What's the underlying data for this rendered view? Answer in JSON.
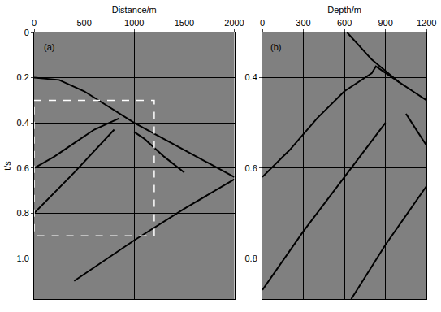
{
  "chart_data": [
    {
      "type": "line",
      "label": "(a)",
      "x_label": "Distance/m",
      "y_label": "t/s",
      "xlim": [
        0,
        2000
      ],
      "xticks": [
        0,
        500,
        1000,
        1500,
        2000
      ],
      "ylim": [
        0,
        1.18
      ],
      "yticks": [
        0,
        0.2,
        0.4,
        0.6,
        0.8,
        {
          "value": 1,
          "label": "1.0"
        }
      ],
      "grid": true,
      "box": {
        "x": [
          0,
          1200
        ],
        "y": [
          0.3,
          0.9
        ]
      },
      "series": [
        {
          "color": "#000000",
          "x": [
            0,
            250,
            500,
            750,
            1000,
            1250,
            1500,
            1750,
            2000
          ],
          "values": [
            0.2,
            0.21,
            0.26,
            0.33,
            0.4,
            0.46,
            0.52,
            0.58,
            0.64
          ]
        },
        {
          "color": "#000000",
          "x": [
            0,
            200,
            400,
            600,
            800,
            850
          ],
          "values": [
            0.6,
            0.55,
            0.49,
            0.43,
            0.39,
            0.38
          ]
        },
        {
          "color": "#000000",
          "x": [
            0,
            400,
            800
          ],
          "values": [
            0.8,
            0.62,
            0.43
          ]
        },
        {
          "color": "#000000",
          "x": [
            400,
            1000,
            1500,
            2000
          ],
          "values": [
            1.1,
            0.92,
            0.78,
            0.65
          ]
        },
        {
          "color": "#000000",
          "x": [
            1000,
            1100,
            1300,
            1500
          ],
          "values": [
            0.44,
            0.47,
            0.55,
            0.62
          ]
        }
      ]
    },
    {
      "type": "line",
      "label": "(b)",
      "x_label": "Depth/m",
      "xlim": [
        0,
        1200
      ],
      "xticks": [
        0,
        300,
        600,
        900,
        1200
      ],
      "ylim": [
        0.3,
        0.89
      ],
      "yticks": [
        0.4,
        0.6,
        0.8
      ],
      "grid": true,
      "series": [
        {
          "color": "#000000",
          "x": [
            620,
            800,
            900,
            1000,
            1200
          ],
          "values": [
            0.3,
            0.36,
            0.385,
            0.41,
            0.45
          ]
        },
        {
          "color": "#000000",
          "x": [
            0,
            200,
            400,
            600,
            800,
            830,
            1000
          ],
          "values": [
            0.62,
            0.56,
            0.49,
            0.43,
            0.39,
            0.375,
            0.41
          ]
        },
        {
          "color": "#000000",
          "x": [
            0,
            300,
            600,
            900
          ],
          "values": [
            0.87,
            0.74,
            0.62,
            0.5
          ]
        },
        {
          "color": "#000000",
          "x": [
            650,
            900,
            1200
          ],
          "values": [
            0.89,
            0.77,
            0.64
          ]
        },
        {
          "color": "#000000",
          "x": [
            1050,
            1200
          ],
          "values": [
            0.48,
            0.55
          ]
        }
      ]
    }
  ]
}
